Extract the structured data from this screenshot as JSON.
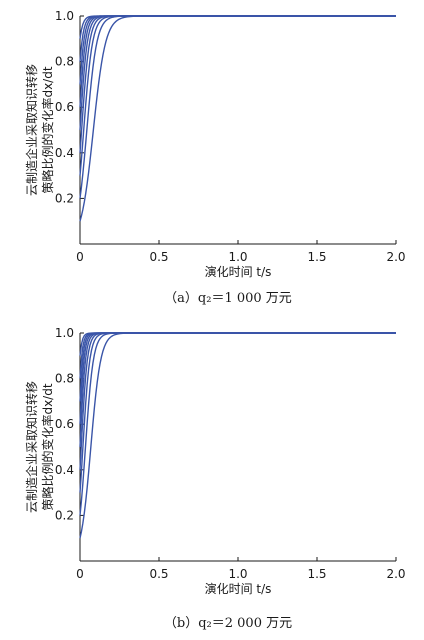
{
  "colors": {
    "line": "#3a55a8",
    "axis": "#1a1a1a"
  },
  "chart_data": [
    {
      "type": "line",
      "caption": "（a）q₂＝1 000 万元",
      "xlabel": "演化时间 t/s",
      "ylabel": [
        "云制造企业采取知识转移",
        "策略比例的变化率dx/dt"
      ],
      "xlim": [
        0,
        2.0
      ],
      "ylim": [
        0,
        1.0
      ],
      "x_ticks": [
        "0",
        "0.5",
        "1.0",
        "1.5",
        "2.0"
      ],
      "y_ticks": [
        "0.2",
        "0.4",
        "0.6",
        "0.8",
        "1.0"
      ],
      "grid": false,
      "series": [
        {
          "start": 0.1,
          "rate": 26
        },
        {
          "start": 0.2,
          "rate": 32
        },
        {
          "start": 0.3,
          "rate": 36
        },
        {
          "start": 0.4,
          "rate": 40
        },
        {
          "start": 0.5,
          "rate": 44
        },
        {
          "start": 0.6,
          "rate": 48
        },
        {
          "start": 0.7,
          "rate": 52
        },
        {
          "start": 0.8,
          "rate": 56
        },
        {
          "start": 0.9,
          "rate": 60
        }
      ]
    },
    {
      "type": "line",
      "caption": "（b）q₂＝2 000 万元",
      "xlabel": "演化时间 t/s",
      "ylabel": [
        "云制造企业采取知识转移",
        "策略比例的变化率dx/dt"
      ],
      "xlim": [
        0,
        2.0
      ],
      "ylim": [
        0,
        1.0
      ],
      "x_ticks": [
        "0",
        "0.5",
        "1.0",
        "1.5",
        "2.0"
      ],
      "y_ticks": [
        "0.2",
        "0.4",
        "0.6",
        "0.8",
        "1.0"
      ],
      "grid": false,
      "series": [
        {
          "start": 0.1,
          "rate": 32
        },
        {
          "start": 0.2,
          "rate": 40
        },
        {
          "start": 0.3,
          "rate": 46
        },
        {
          "start": 0.4,
          "rate": 52
        },
        {
          "start": 0.5,
          "rate": 58
        },
        {
          "start": 0.6,
          "rate": 64
        },
        {
          "start": 0.7,
          "rate": 70
        },
        {
          "start": 0.8,
          "rate": 76
        },
        {
          "start": 0.9,
          "rate": 82
        }
      ]
    }
  ]
}
